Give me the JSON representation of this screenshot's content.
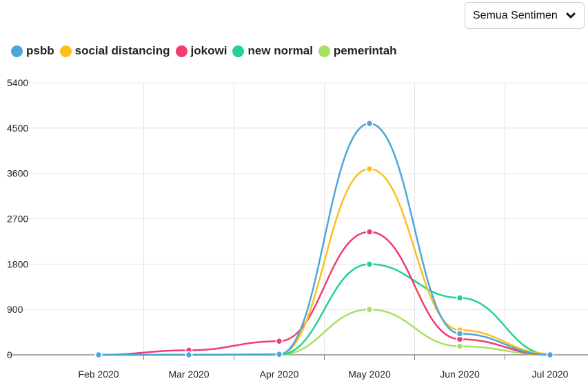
{
  "filter": {
    "selected": "Semua Sentimen",
    "icon": "chevron-down-icon"
  },
  "chart_data": {
    "type": "line",
    "categories": [
      "Feb 2020",
      "Mar 2020",
      "Apr 2020",
      "May 2020",
      "Jun 2020",
      "Jul 2020"
    ],
    "ylim": [
      0,
      5400
    ],
    "yticks": [
      0,
      900,
      1800,
      2700,
      3600,
      4500,
      5400
    ],
    "grid": true,
    "legend": "top-left",
    "series": [
      {
        "name": "pemerintah",
        "color": "#a8e05f",
        "values": [
          0,
          0,
          0,
          900,
          170,
          0
        ]
      },
      {
        "name": "new normal",
        "color": "#22d391",
        "values": [
          0,
          0,
          0,
          1800,
          1130,
          0
        ]
      },
      {
        "name": "jokowi",
        "color": "#f23d6e",
        "values": [
          0,
          90,
          270,
          2440,
          310,
          0
        ]
      },
      {
        "name": "social distancing",
        "color": "#fcbf1e",
        "values": [
          0,
          0,
          10,
          3690,
          490,
          20
        ]
      },
      {
        "name": "psbb",
        "color": "#4aa8d8",
        "values": [
          0,
          0,
          10,
          4590,
          420,
          0
        ]
      }
    ],
    "legend_order": [
      "psbb",
      "social distancing",
      "jokowi",
      "new normal",
      "pemerintah"
    ]
  }
}
